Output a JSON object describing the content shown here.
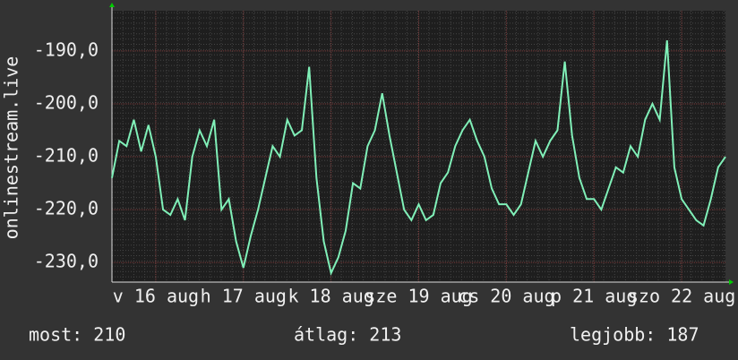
{
  "chart_data": {
    "type": "line",
    "y_label": "onlinestream.live",
    "x": [
      0,
      2,
      4,
      6,
      8,
      10,
      12,
      14,
      16,
      18,
      20,
      22,
      24,
      26,
      28,
      30,
      32,
      34,
      36,
      38,
      40,
      42,
      44,
      46,
      48,
      50,
      52,
      54,
      56,
      58,
      60,
      62,
      64,
      66,
      68,
      70,
      72,
      74,
      76,
      78,
      80,
      82,
      84,
      86,
      88,
      90,
      92,
      94,
      96,
      98,
      100,
      102,
      104,
      106,
      108,
      110,
      112,
      114,
      116,
      118,
      120,
      122,
      124,
      126,
      128,
      130,
      132,
      134,
      136,
      138,
      140,
      142,
      144,
      146,
      148,
      150,
      152,
      154,
      156,
      158,
      160,
      162,
      164,
      166,
      168
    ],
    "series": [
      {
        "color": "#80f0b8",
        "values": [
          -214,
          -207,
          -208,
          -203,
          -209,
          -204,
          -210,
          -220,
          -221,
          -218,
          -222,
          -210,
          -205,
          -208,
          -203,
          -220,
          -218,
          -226,
          -231,
          -225,
          -220,
          -214,
          -208,
          -210,
          -203,
          -206,
          -205,
          -193,
          -214,
          -226,
          -232,
          -229,
          -224,
          -215,
          -216,
          -208,
          -205,
          -198,
          -206,
          -213,
          -220,
          -222,
          -219,
          -222,
          -221,
          -215,
          -213,
          -208,
          -205,
          -203,
          -207,
          -210,
          -216,
          -219,
          -219,
          -221,
          -219,
          -213,
          -207,
          -210,
          -207,
          -205,
          -192,
          -206,
          -214,
          -218,
          -218,
          -220,
          -216,
          -212,
          -213,
          -208,
          -210,
          -203,
          -200,
          -203,
          -188,
          -212,
          -218,
          -220,
          -222,
          -223,
          -218,
          -212,
          -210
        ]
      }
    ],
    "xlim": [
      0,
      168
    ],
    "xticks": [
      {
        "value": 12,
        "label": "v 16 aug"
      },
      {
        "value": 36,
        "label": "h 17 aug"
      },
      {
        "value": 60,
        "label": "k 18 aug"
      },
      {
        "value": 84,
        "label": "sze 19 aug"
      },
      {
        "value": 108,
        "label": "cs 20 aug"
      },
      {
        "value": 132,
        "label": "p 21 aug"
      },
      {
        "value": 156,
        "label": "szo 22 aug"
      }
    ],
    "ylim": [
      -233.7,
      -182.4
    ],
    "yticks": [
      {
        "value": -230,
        "label": "-230,0"
      },
      {
        "value": -220,
        "label": "-220,0"
      },
      {
        "value": -210,
        "label": "-210,0"
      },
      {
        "value": -200,
        "label": "-200,0"
      },
      {
        "value": -190,
        "label": "-190,0"
      }
    ],
    "grid": true,
    "footer": [
      "most: 210",
      "átlag: 213",
      "legjobb: 187"
    ]
  }
}
